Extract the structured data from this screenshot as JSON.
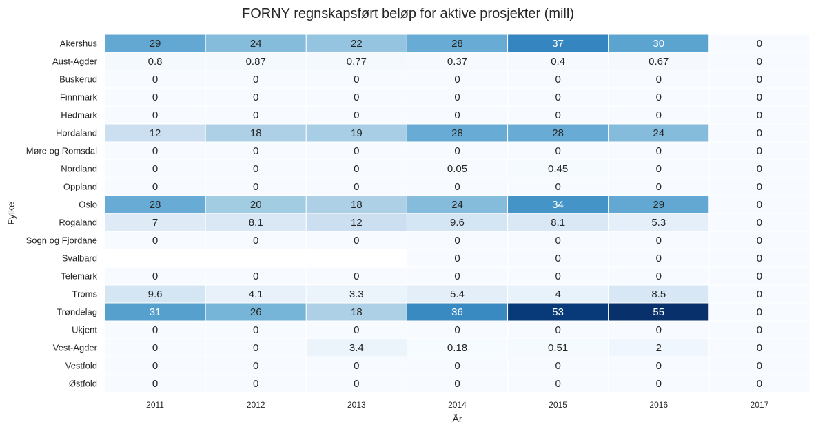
{
  "chart_data": {
    "type": "heatmap",
    "title": "FORNY regnskapsført beløp for aktive prosjekter (mill)",
    "xlabel": "År",
    "ylabel": "Fylke",
    "x": [
      "2011",
      "2012",
      "2013",
      "2014",
      "2015",
      "2016",
      "2017"
    ],
    "y": [
      "Akershus",
      "Aust-Agder",
      "Buskerud",
      "Finnmark",
      "Hedmark",
      "Hordaland",
      "Møre og Romsdal",
      "Nordland",
      "Oppland",
      "Oslo",
      "Rogaland",
      "Sogn og Fjordane",
      "Svalbard",
      "Telemark",
      "Troms",
      "Trøndelag",
      "Ukjent",
      "Vest-Agder",
      "Vestfold",
      "Østfold"
    ],
    "values": [
      [
        29,
        24,
        22,
        28,
        37,
        30,
        0
      ],
      [
        0.8,
        0.87,
        0.77,
        0.37,
        0.4,
        0.67,
        0
      ],
      [
        0,
        0,
        0,
        0,
        0,
        0,
        0
      ],
      [
        0,
        0,
        0,
        0,
        0,
        0,
        0
      ],
      [
        0,
        0,
        0,
        0,
        0,
        0,
        0
      ],
      [
        12,
        18,
        19,
        28,
        28,
        24,
        0
      ],
      [
        0,
        0,
        0,
        0,
        0,
        0,
        0
      ],
      [
        0,
        0,
        0,
        0.05,
        0.45,
        0,
        0
      ],
      [
        0,
        0,
        0,
        0,
        0,
        0,
        0
      ],
      [
        28,
        20,
        18,
        24,
        34,
        29,
        0
      ],
      [
        7,
        8.1,
        12,
        9.6,
        8.1,
        5.3,
        0
      ],
      [
        0,
        0,
        0,
        0,
        0,
        0,
        0
      ],
      [
        null,
        null,
        null,
        0,
        0,
        0,
        0
      ],
      [
        0,
        0,
        0,
        0,
        0,
        0,
        0
      ],
      [
        9.6,
        4.1,
        3.3,
        5.4,
        4,
        8.5,
        0
      ],
      [
        31,
        26,
        18,
        36,
        53,
        55,
        0
      ],
      [
        0,
        0,
        0,
        0,
        0,
        0,
        0
      ],
      [
        0,
        0,
        3.4,
        0.18,
        0.51,
        2,
        0
      ],
      [
        0,
        0,
        0,
        0,
        0,
        0,
        0
      ],
      [
        0,
        0,
        0,
        0,
        0,
        0,
        0
      ]
    ],
    "vmin": 0,
    "vmax": 55,
    "colormap": "Blues",
    "colorbar": false
  }
}
